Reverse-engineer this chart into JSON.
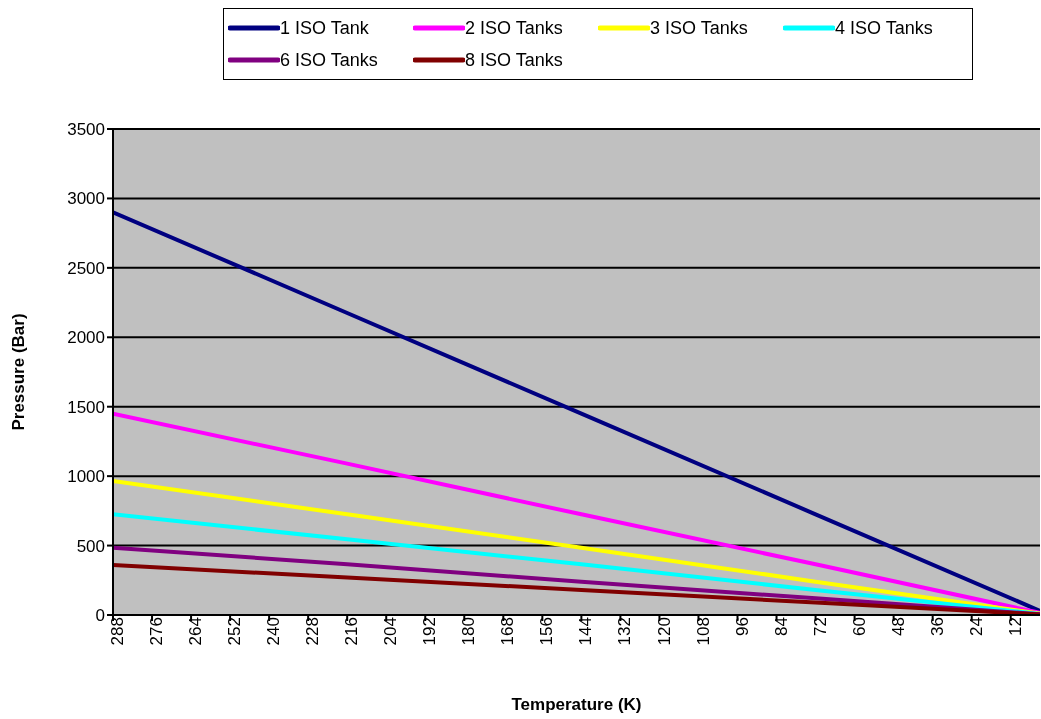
{
  "chart_data": {
    "type": "line",
    "xlabel": "Temperature (K)",
    "ylabel": "Pressure (Bar)",
    "x": [
      288,
      216,
      144,
      72,
      3
    ],
    "series": [
      {
        "name": "1 ISO Tank",
        "color": "#000080",
        "values": [
          2900,
          2175,
          1450,
          725,
          30
        ]
      },
      {
        "name": "2 ISO Tanks",
        "color": "#ff00ff",
        "values": [
          1450,
          1090,
          725,
          365,
          15
        ]
      },
      {
        "name": "3 ISO Tanks",
        "color": "#ffff00",
        "values": [
          965,
          725,
          485,
          240,
          10
        ]
      },
      {
        "name": "4 ISO Tanks",
        "color": "#00ffff",
        "values": [
          725,
          545,
          365,
          180,
          8
        ]
      },
      {
        "name": "6 ISO Tanks",
        "color": "#800080",
        "values": [
          485,
          365,
          240,
          120,
          5
        ]
      },
      {
        "name": "8 ISO Tanks",
        "color": "#800000",
        "values": [
          360,
          270,
          180,
          90,
          4
        ]
      }
    ],
    "xlim": [
      288,
      3
    ],
    "xticks": [
      288,
      276,
      264,
      252,
      240,
      228,
      216,
      204,
      192,
      180,
      168,
      156,
      144,
      132,
      120,
      108,
      96,
      84,
      72,
      60,
      48,
      36,
      24,
      12
    ],
    "ylim": [
      0,
      3500
    ],
    "yticks": [
      0,
      500,
      1000,
      1500,
      2000,
      2500,
      3000,
      3500
    ],
    "grid": "y",
    "legend": "top",
    "marker": "none",
    "line_style": "solid"
  }
}
